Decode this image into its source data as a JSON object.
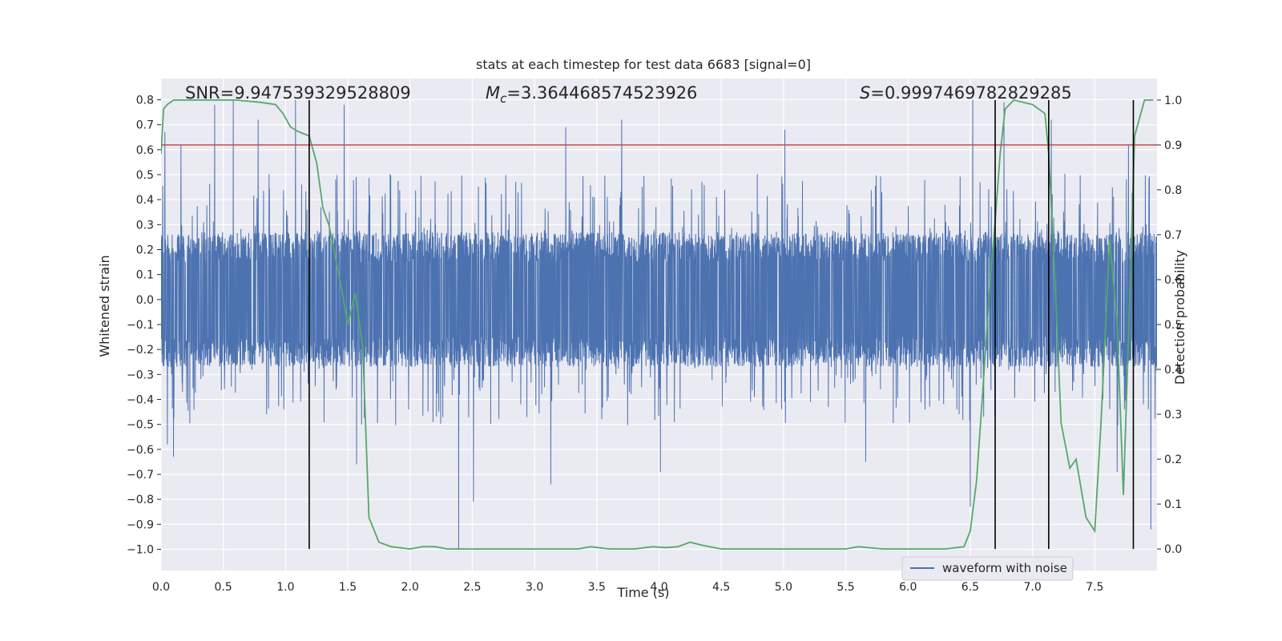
{
  "chart_data": {
    "type": "line",
    "title": "stats at each timestep for test data 6683 [signal=0]",
    "xlabel": "Time (s)",
    "ylabel": "Whitened strain",
    "y2label": "Detection probability",
    "xlim": [
      0.0,
      8.0
    ],
    "ylim": [
      -1.085,
      0.885
    ],
    "y2lim": [
      -0.048,
      1.048
    ],
    "xticks": [
      "0.0",
      "0.5",
      "1.0",
      "1.5",
      "2.0",
      "2.5",
      "3.0",
      "3.5",
      "4.0",
      "4.5",
      "5.0",
      "5.5",
      "6.0",
      "6.5",
      "7.0",
      "7.5"
    ],
    "xtick_values": [
      0.0,
      0.5,
      1.0,
      1.5,
      2.0,
      2.5,
      3.0,
      3.5,
      4.0,
      4.5,
      5.0,
      5.5,
      6.0,
      6.5,
      7.0,
      7.5
    ],
    "yticks": [
      "0.8",
      "0.7",
      "0.6",
      "0.5",
      "0.4",
      "0.3",
      "0.2",
      "0.1",
      "0.0",
      "−0.1",
      "−0.2",
      "−0.3",
      "−0.4",
      "−0.5",
      "−0.6",
      "−0.7",
      "−0.8",
      "−0.9",
      "−1.0"
    ],
    "ytick_values": [
      0.8,
      0.7,
      0.6,
      0.5,
      0.4,
      0.3,
      0.2,
      0.1,
      0.0,
      -0.1,
      -0.2,
      -0.3,
      -0.4,
      -0.5,
      -0.6,
      -0.7,
      -0.8,
      -0.9,
      -1.0
    ],
    "y2ticks": [
      "1.0",
      "0.9",
      "0.8",
      "0.7",
      "0.6",
      "0.5",
      "0.4",
      "0.3",
      "0.2",
      "0.1",
      "0.0"
    ],
    "y2tick_values": [
      1.0,
      0.9,
      0.8,
      0.7,
      0.6,
      0.5,
      0.4,
      0.3,
      0.2,
      0.1,
      0.0
    ],
    "annotations": {
      "snr": "SNR=9.947539329528809",
      "mc_prefix": "M",
      "mc_sub": "c",
      "mc_value": "=3.364468574523926",
      "s_prefix": "S",
      "s_value": "=0.9997469782829285"
    },
    "threshold": 0.9,
    "vertical_lines_x": [
      1.19,
      6.7,
      7.13,
      7.81
    ],
    "series": [
      {
        "name": "waveform with noise",
        "kind": "noise",
        "color": "#4c72b0",
        "core_amplitude": 0.27,
        "typical_peak": 0.45,
        "spikes": [
          {
            "x": 0.03,
            "y": 0.67
          },
          {
            "x": 0.05,
            "y": -0.58
          },
          {
            "x": 0.1,
            "y": -0.63
          },
          {
            "x": 0.16,
            "y": 0.62
          },
          {
            "x": 0.43,
            "y": 0.78
          },
          {
            "x": 0.58,
            "y": 0.8
          },
          {
            "x": 0.78,
            "y": 0.72
          },
          {
            "x": 1.08,
            "y": 0.8
          },
          {
            "x": 1.47,
            "y": 0.78
          },
          {
            "x": 1.57,
            "y": -0.66
          },
          {
            "x": 2.39,
            "y": -1.0
          },
          {
            "x": 2.51,
            "y": -0.81
          },
          {
            "x": 3.13,
            "y": -0.74
          },
          {
            "x": 3.25,
            "y": 0.69
          },
          {
            "x": 3.7,
            "y": 0.72
          },
          {
            "x": 4.01,
            "y": -0.69
          },
          {
            "x": 5.01,
            "y": 0.68
          },
          {
            "x": 5.66,
            "y": -0.65
          },
          {
            "x": 6.5,
            "y": -0.83
          },
          {
            "x": 6.52,
            "y": 0.8
          },
          {
            "x": 6.77,
            "y": 0.79
          },
          {
            "x": 7.15,
            "y": 0.72
          },
          {
            "x": 7.68,
            "y": -0.69
          },
          {
            "x": 7.77,
            "y": 0.62
          },
          {
            "x": 7.95,
            "y": -0.92
          }
        ]
      },
      {
        "name": "detection probability",
        "kind": "line",
        "axis": "right",
        "color": "#55a868",
        "x": [
          0.0,
          0.02,
          0.05,
          0.1,
          0.2,
          0.4,
          0.6,
          0.8,
          0.92,
          0.98,
          1.04,
          1.1,
          1.19,
          1.25,
          1.3,
          1.35,
          1.4,
          1.45,
          1.5,
          1.56,
          1.62,
          1.67,
          1.75,
          1.85,
          2.0,
          2.1,
          2.2,
          2.3,
          2.4,
          2.6,
          3.0,
          3.2,
          3.35,
          3.45,
          3.6,
          3.8,
          3.95,
          4.05,
          4.15,
          4.25,
          4.35,
          4.5,
          5.0,
          5.5,
          5.6,
          5.8,
          6.0,
          6.3,
          6.45,
          6.5,
          6.55,
          6.6,
          6.66,
          6.7,
          6.74,
          6.78,
          6.85,
          7.0,
          7.1,
          7.13,
          7.18,
          7.23,
          7.3,
          7.35,
          7.43,
          7.5,
          7.55,
          7.62,
          7.68,
          7.73,
          7.78,
          7.82,
          7.9,
          7.97
        ],
        "y": [
          0.88,
          0.98,
          0.99,
          1.0,
          1.0,
          1.0,
          1.0,
          0.995,
          0.99,
          0.97,
          0.94,
          0.93,
          0.92,
          0.86,
          0.76,
          0.72,
          0.65,
          0.58,
          0.5,
          0.57,
          0.45,
          0.07,
          0.015,
          0.005,
          0.0,
          0.005,
          0.005,
          0.0,
          0.0,
          0.0,
          0.0,
          0.0,
          0.0,
          0.005,
          0.0,
          0.0,
          0.005,
          0.003,
          0.005,
          0.015,
          0.008,
          0.0,
          0.0,
          0.0,
          0.005,
          0.0,
          0.0,
          0.0,
          0.005,
          0.04,
          0.15,
          0.35,
          0.6,
          0.73,
          0.88,
          0.98,
          1.0,
          0.99,
          0.97,
          0.88,
          0.6,
          0.28,
          0.18,
          0.2,
          0.07,
          0.04,
          0.28,
          0.69,
          0.5,
          0.12,
          0.55,
          0.92,
          1.0,
          1.0
        ]
      },
      {
        "name": "threshold",
        "kind": "hline",
        "axis": "right",
        "color": "#c44e52",
        "y": 0.9
      }
    ],
    "legend": {
      "position": "lower-right",
      "entries": [
        "waveform with noise"
      ]
    },
    "grid": true,
    "colors": {
      "background": "#eaeaf2",
      "grid": "#ffffff",
      "vline": "#000000"
    }
  }
}
